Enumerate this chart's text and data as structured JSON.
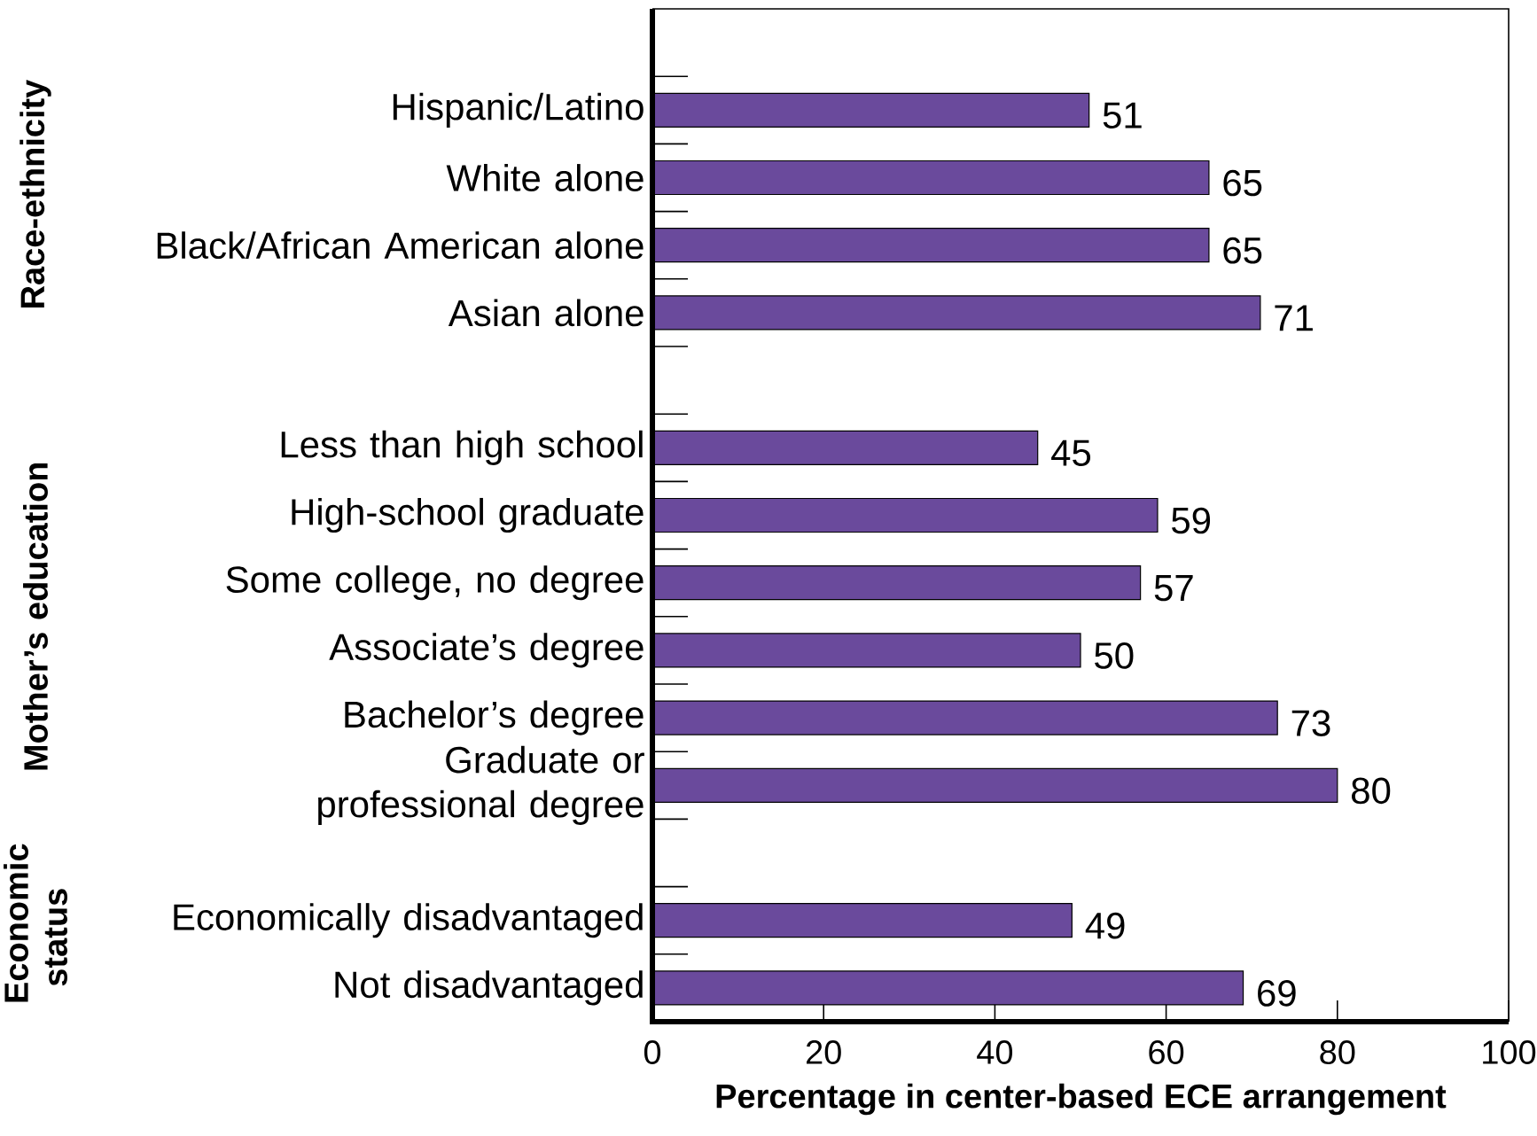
{
  "chart_data": [
    {
      "type": "bar",
      "orientation": "horizontal",
      "ylabel": "Race-ethnicity",
      "categories": [
        "Hispanic/Latino",
        "White alone",
        "Black/African American alone",
        "Asian alone"
      ],
      "values": [
        51,
        65,
        65,
        71
      ],
      "color": "#6a4a9c",
      "data_labels": true,
      "xlim": [
        0,
        100
      ],
      "tick_labels": "y"
    },
    {
      "type": "bar",
      "orientation": "horizontal",
      "ylabel": "Mother’s education",
      "categories": [
        "Less than high school",
        "High-school graduate",
        "Some college, no degree",
        "Associate’s degree",
        "Bachelor’s degree",
        "Graduate or professional degree"
      ],
      "values": [
        45,
        59,
        57,
        50,
        73,
        80
      ],
      "color": "#6a4a9c",
      "data_labels": true,
      "xlim": [
        0,
        100
      ],
      "tick_labels": "y"
    },
    {
      "type": "bar",
      "orientation": "horizontal",
      "ylabel": "Economic status",
      "categories": [
        "Economically disadvantaged",
        "Not disadvantaged"
      ],
      "values": [
        49,
        69
      ],
      "color": "#6a4a9c",
      "data_labels": true,
      "xlim": [
        0,
        100
      ],
      "xticks": [
        0,
        20,
        40,
        60,
        80,
        100
      ],
      "xlabel": "Percentage in center-based ECE arrangement"
    }
  ]
}
